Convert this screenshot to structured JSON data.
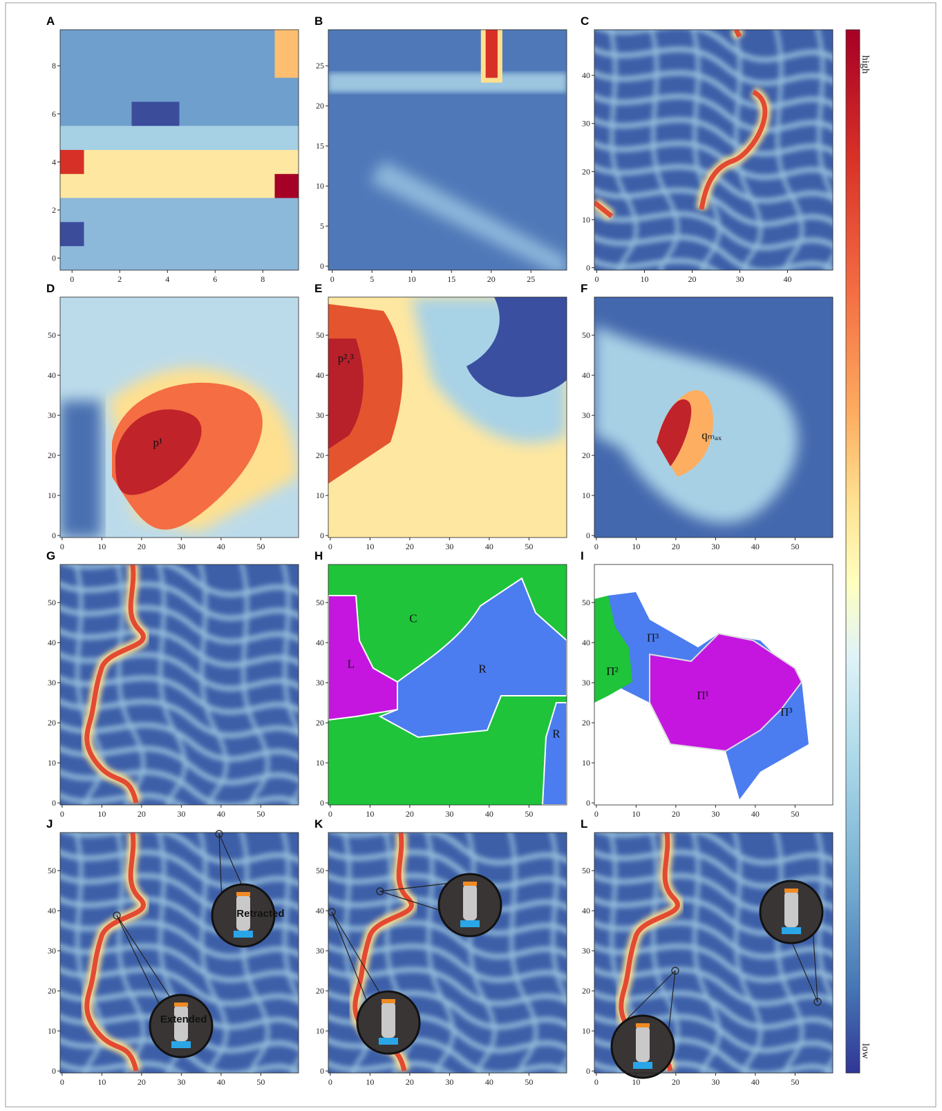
{
  "figure": {
    "panels": [
      {
        "label": "A",
        "xlim": [
          -0.5,
          9.5
        ],
        "ylim": [
          9.5,
          -0.5
        ],
        "xticks": [
          0,
          2,
          4,
          6,
          8
        ],
        "yticks": [
          0,
          2,
          4,
          6,
          8
        ]
      },
      {
        "label": "B",
        "xlim": [
          -0.5,
          29.5
        ],
        "ylim": [
          29.5,
          -0.5
        ],
        "xticks": [
          0,
          5,
          10,
          15,
          20,
          25
        ],
        "yticks": [
          0,
          5,
          10,
          15,
          20,
          25
        ]
      },
      {
        "label": "C",
        "xlim": [
          -0.5,
          49.5
        ],
        "ylim": [
          49.5,
          -0.5
        ],
        "xticks": [
          0,
          10,
          20,
          30,
          40
        ],
        "yticks": [
          0,
          10,
          20,
          30,
          40
        ]
      },
      {
        "label": "D",
        "xlim": [
          -0.5,
          59.5
        ],
        "ylim": [
          59.5,
          -0.5
        ],
        "xticks": [
          0,
          10,
          20,
          30,
          40,
          50
        ],
        "yticks": [
          0,
          10,
          20,
          30,
          40,
          50
        ],
        "annotations": [
          {
            "text": "p¹"
          }
        ]
      },
      {
        "label": "E",
        "xlim": [
          -0.5,
          59.5
        ],
        "ylim": [
          59.5,
          -0.5
        ],
        "xticks": [
          0,
          10,
          20,
          30,
          40,
          50
        ],
        "yticks": [
          0,
          10,
          20,
          30,
          40,
          50
        ],
        "annotations": [
          {
            "text": "p²,³"
          }
        ]
      },
      {
        "label": "F",
        "xlim": [
          -0.5,
          59.5
        ],
        "ylim": [
          59.5,
          -0.5
        ],
        "xticks": [
          0,
          10,
          20,
          30,
          40,
          50
        ],
        "yticks": [
          0,
          10,
          20,
          30,
          40,
          50
        ],
        "annotations": [
          {
            "text": "qₘₐₓ"
          }
        ]
      },
      {
        "label": "G",
        "xlim": [
          -0.5,
          59.5
        ],
        "ylim": [
          59.5,
          -0.5
        ],
        "xticks": [
          0,
          10,
          20,
          30,
          40,
          50
        ],
        "yticks": [
          0,
          10,
          20,
          30,
          40,
          50
        ]
      },
      {
        "label": "H",
        "xlim": [
          -0.5,
          59.5
        ],
        "ylim": [
          59.5,
          -0.5
        ],
        "xticks": [
          0,
          10,
          20,
          30,
          40,
          50
        ],
        "yticks": [
          0,
          10,
          20,
          30,
          40,
          50
        ],
        "annotations": [
          {
            "text": "C"
          },
          {
            "text": "L"
          },
          {
            "text": "R"
          },
          {
            "text": "R"
          }
        ]
      },
      {
        "label": "I",
        "xlim": [
          -0.5,
          59.5
        ],
        "ylim": [
          59.5,
          -0.5
        ],
        "xticks": [
          0,
          10,
          20,
          30,
          40,
          50
        ],
        "yticks": [
          0,
          10,
          20,
          30,
          40,
          50
        ],
        "annotations": [
          {
            "text": "Π³"
          },
          {
            "text": "Π²"
          },
          {
            "text": "Π¹"
          },
          {
            "text": "Π³"
          }
        ]
      },
      {
        "label": "J",
        "xlim": [
          -0.5,
          59.5
        ],
        "ylim": [
          59.5,
          -0.5
        ],
        "xticks": [
          0,
          10,
          20,
          30,
          40,
          50
        ],
        "yticks": [
          0,
          10,
          20,
          30,
          40,
          50
        ],
        "annotations": [
          {
            "text": "Retracted"
          },
          {
            "text": "Extended"
          }
        ]
      },
      {
        "label": "K",
        "xlim": [
          -0.5,
          59.5
        ],
        "ylim": [
          59.5,
          -0.5
        ],
        "xticks": [
          0,
          10,
          20,
          30,
          40,
          50
        ],
        "yticks": [
          0,
          10,
          20,
          30,
          40,
          50
        ]
      },
      {
        "label": "L",
        "xlim": [
          -0.5,
          59.5
        ],
        "ylim": [
          59.5,
          -0.5
        ],
        "xticks": [
          0,
          10,
          20,
          30,
          40,
          50
        ],
        "yticks": [
          0,
          10,
          20,
          30,
          40,
          50
        ]
      }
    ],
    "colorbar": {
      "high": "high",
      "low": "low"
    }
  }
}
